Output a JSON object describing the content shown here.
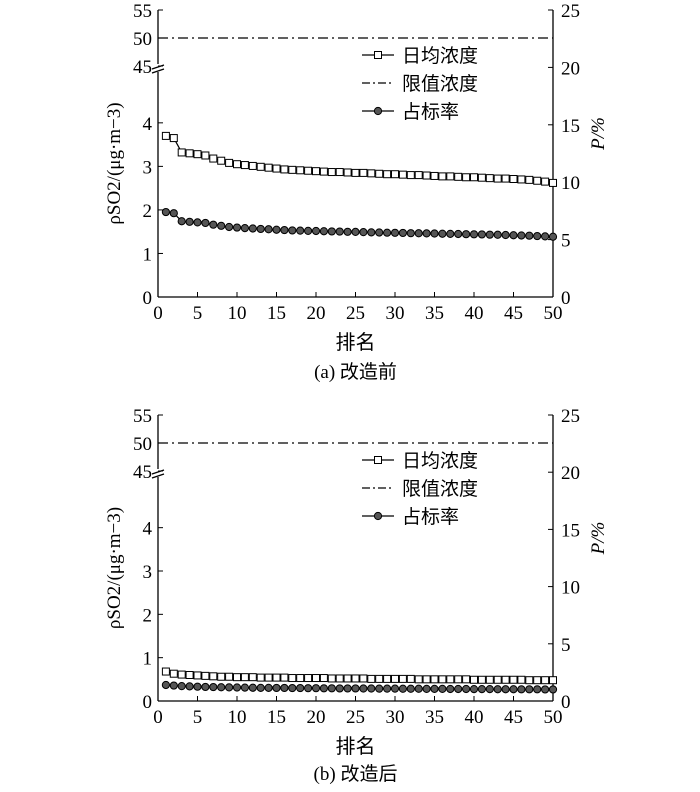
{
  "chart_data": [
    {
      "type": "line",
      "title": "",
      "caption": "(a) 改造前",
      "xlabel": "排名",
      "ylabel_left": "ρSO2/(μg·m−3)",
      "ylabel_right": "P/%",
      "x_ticks": [
        "0",
        "5",
        "10",
        "15",
        "20",
        "25",
        "30",
        "35",
        "40",
        "45",
        "50"
      ],
      "y_left_ticks_lower": [
        "0",
        "1",
        "2",
        "3",
        "4"
      ],
      "y_left_ticks_upper": [
        "45",
        "50",
        "55"
      ],
      "y_right_ticks": [
        "0",
        "5",
        "10",
        "15",
        "20",
        "25"
      ],
      "xlim": [
        0,
        50
      ],
      "ylim_left_lower": [
        0,
        4.8
      ],
      "ylim_left_upper": [
        45,
        55
      ],
      "ylim_right": [
        0,
        25
      ],
      "legend_position": "top-right",
      "limit_line": {
        "name": "限值浓度",
        "y": 50,
        "axis": "left",
        "style": "dash-dot"
      },
      "series": [
        {
          "name": "日均浓度",
          "axis": "left",
          "marker": "square",
          "x": [
            1,
            2,
            3,
            4,
            5,
            6,
            7,
            8,
            9,
            10,
            11,
            12,
            13,
            14,
            15,
            16,
            17,
            18,
            19,
            20,
            21,
            22,
            23,
            24,
            25,
            26,
            27,
            28,
            29,
            30,
            31,
            32,
            33,
            34,
            35,
            36,
            37,
            38,
            39,
            40,
            41,
            42,
            43,
            44,
            45,
            46,
            47,
            48,
            49,
            50
          ],
          "values": [
            3.7,
            3.65,
            3.32,
            3.3,
            3.28,
            3.25,
            3.18,
            3.13,
            3.08,
            3.05,
            3.03,
            3.01,
            2.99,
            2.97,
            2.95,
            2.93,
            2.92,
            2.91,
            2.9,
            2.89,
            2.88,
            2.87,
            2.87,
            2.86,
            2.85,
            2.85,
            2.84,
            2.83,
            2.82,
            2.82,
            2.81,
            2.8,
            2.8,
            2.79,
            2.78,
            2.77,
            2.77,
            2.76,
            2.75,
            2.75,
            2.74,
            2.73,
            2.72,
            2.72,
            2.71,
            2.7,
            2.69,
            2.67,
            2.65,
            2.62
          ]
        },
        {
          "name": "占标率",
          "axis": "right",
          "marker": "circle",
          "x": [
            1,
            2,
            3,
            4,
            5,
            6,
            7,
            8,
            9,
            10,
            11,
            12,
            13,
            14,
            15,
            16,
            17,
            18,
            19,
            20,
            21,
            22,
            23,
            24,
            25,
            26,
            27,
            28,
            29,
            30,
            31,
            32,
            33,
            34,
            35,
            36,
            37,
            38,
            39,
            40,
            41,
            42,
            43,
            44,
            45,
            46,
            47,
            48,
            49,
            50
          ],
          "values": [
            7.4,
            7.3,
            6.6,
            6.55,
            6.5,
            6.45,
            6.3,
            6.2,
            6.1,
            6.05,
            6.0,
            5.97,
            5.93,
            5.9,
            5.86,
            5.83,
            5.8,
            5.78,
            5.76,
            5.75,
            5.73,
            5.71,
            5.7,
            5.68,
            5.67,
            5.65,
            5.63,
            5.62,
            5.6,
            5.59,
            5.58,
            5.56,
            5.55,
            5.54,
            5.53,
            5.51,
            5.5,
            5.49,
            5.47,
            5.46,
            5.45,
            5.43,
            5.42,
            5.4,
            5.38,
            5.36,
            5.34,
            5.31,
            5.28,
            5.25
          ]
        }
      ]
    },
    {
      "type": "line",
      "title": "",
      "caption": "(b) 改造后",
      "xlabel": "排名",
      "ylabel_left": "ρSO2/(μg·m−3)",
      "ylabel_right": "P/%",
      "x_ticks": [
        "0",
        "5",
        "10",
        "15",
        "20",
        "25",
        "30",
        "35",
        "40",
        "45",
        "50"
      ],
      "y_left_ticks_lower": [
        "0",
        "1",
        "2",
        "3",
        "4"
      ],
      "y_left_ticks_upper": [
        "45",
        "50",
        "55"
      ],
      "y_right_ticks": [
        "0",
        "5",
        "10",
        "15",
        "20",
        "25"
      ],
      "xlim": [
        0,
        50
      ],
      "ylim_left_lower": [
        0,
        4.8
      ],
      "ylim_left_upper": [
        45,
        55
      ],
      "ylim_right": [
        0,
        25
      ],
      "legend_position": "top-right",
      "limit_line": {
        "name": "限值浓度",
        "y": 50,
        "axis": "left",
        "style": "dash-dot"
      },
      "series": [
        {
          "name": "日均浓度",
          "axis": "left",
          "marker": "square",
          "x": [
            1,
            2,
            3,
            4,
            5,
            6,
            7,
            8,
            9,
            10,
            11,
            12,
            13,
            14,
            15,
            16,
            17,
            18,
            19,
            20,
            21,
            22,
            23,
            24,
            25,
            26,
            27,
            28,
            29,
            30,
            31,
            32,
            33,
            34,
            35,
            36,
            37,
            38,
            39,
            40,
            41,
            42,
            43,
            44,
            45,
            46,
            47,
            48,
            49,
            50
          ],
          "values": [
            0.68,
            0.63,
            0.61,
            0.6,
            0.59,
            0.58,
            0.57,
            0.56,
            0.56,
            0.55,
            0.55,
            0.55,
            0.54,
            0.54,
            0.54,
            0.54,
            0.53,
            0.53,
            0.53,
            0.53,
            0.53,
            0.52,
            0.52,
            0.52,
            0.52,
            0.52,
            0.51,
            0.51,
            0.51,
            0.51,
            0.51,
            0.51,
            0.5,
            0.5,
            0.5,
            0.5,
            0.5,
            0.5,
            0.5,
            0.49,
            0.49,
            0.49,
            0.49,
            0.49,
            0.49,
            0.49,
            0.48,
            0.48,
            0.48,
            0.48
          ]
        },
        {
          "name": "占标率",
          "axis": "right",
          "marker": "circle",
          "x": [
            1,
            2,
            3,
            4,
            5,
            6,
            7,
            8,
            9,
            10,
            11,
            12,
            13,
            14,
            15,
            16,
            17,
            18,
            19,
            20,
            21,
            22,
            23,
            24,
            25,
            26,
            27,
            28,
            29,
            30,
            31,
            32,
            33,
            34,
            35,
            36,
            37,
            38,
            39,
            40,
            41,
            42,
            43,
            44,
            45,
            46,
            47,
            48,
            49,
            50
          ],
          "values": [
            1.4,
            1.35,
            1.3,
            1.28,
            1.25,
            1.23,
            1.22,
            1.2,
            1.19,
            1.18,
            1.17,
            1.16,
            1.15,
            1.15,
            1.14,
            1.14,
            1.13,
            1.13,
            1.12,
            1.12,
            1.11,
            1.11,
            1.1,
            1.1,
            1.1,
            1.09,
            1.09,
            1.08,
            1.08,
            1.08,
            1.07,
            1.07,
            1.07,
            1.06,
            1.06,
            1.06,
            1.05,
            1.05,
            1.05,
            1.04,
            1.04,
            1.04,
            1.03,
            1.03,
            1.03,
            1.02,
            1.02,
            1.02,
            1.01,
            1.01
          ]
        }
      ]
    }
  ]
}
